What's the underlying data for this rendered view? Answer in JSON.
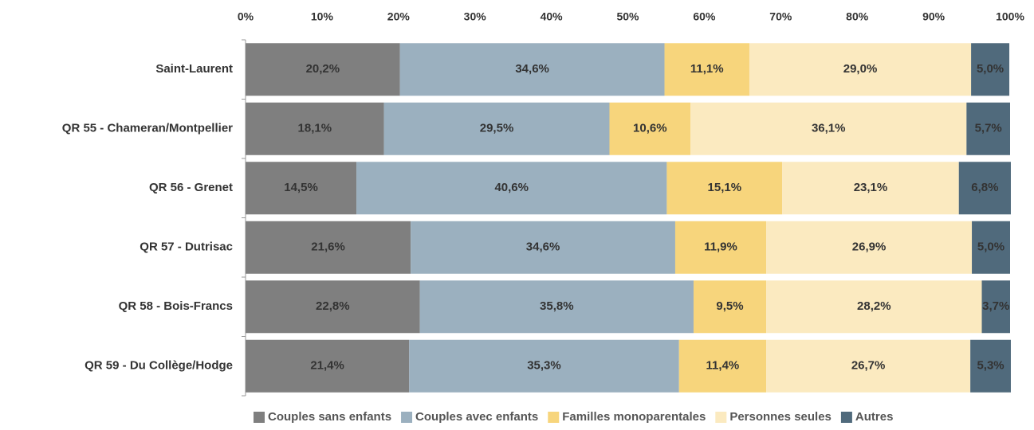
{
  "chart_data": {
    "type": "stacked_barh",
    "categories": [
      "Saint-Laurent",
      "QR 55 - Chameran/Montpellier",
      "QR 56 - Grenet",
      "QR 57 - Dutrisac",
      "QR 58 - Bois-Francs",
      "QR 59 - Du Collège/Hodge"
    ],
    "xlim": [
      0,
      100
    ],
    "xticks": [
      {
        "value": 0,
        "label": "0%"
      },
      {
        "value": 10,
        "label": "10%"
      },
      {
        "value": 20,
        "label": "20%"
      },
      {
        "value": 30,
        "label": "30%"
      },
      {
        "value": 40,
        "label": "40%"
      },
      {
        "value": 50,
        "label": "50%"
      },
      {
        "value": 60,
        "label": "60%"
      },
      {
        "value": 70,
        "label": "70%"
      },
      {
        "value": 80,
        "label": "80%"
      },
      {
        "value": 90,
        "label": "90%"
      },
      {
        "value": 100,
        "label": "100%"
      }
    ],
    "legend": "bottom",
    "series": [
      {
        "name": "Couples sans enfants",
        "color": "#7f7f7f",
        "label_color": "#f8e3a3",
        "values": [
          20.2,
          18.1,
          14.5,
          21.6,
          22.8,
          21.4
        ],
        "value_labels": [
          "20,2%",
          "18,1%",
          "14,5%",
          "21,6%",
          "22,8%",
          "21,4%"
        ]
      },
      {
        "name": "Couples avec enfants",
        "color": "#9bb0bf",
        "label_color": "#4f6677",
        "values": [
          34.6,
          29.5,
          40.6,
          34.6,
          35.8,
          35.3
        ],
        "value_labels": [
          "34,6%",
          "29,5%",
          "40,6%",
          "34,6%",
          "35,8%",
          "35,3%"
        ]
      },
      {
        "name": "Familles monoparentales",
        "color": "#f7d57c",
        "label_color": "#4a5866",
        "values": [
          11.1,
          10.6,
          15.1,
          11.9,
          9.5,
          11.4
        ],
        "value_labels": [
          "11,1%",
          "10,6%",
          "15,1%",
          "11,9%",
          "9,5%",
          "11,4%"
        ]
      },
      {
        "name": "Personnes seules",
        "color": "#fbeac0",
        "label_color": "#4a5866",
        "values": [
          29.0,
          36.1,
          23.1,
          26.9,
          28.2,
          26.7
        ],
        "value_labels": [
          "29,0%",
          "36,1%",
          "23,1%",
          "26,9%",
          "28,2%",
          "26,7%"
        ]
      },
      {
        "name": "Autres",
        "color": "#506a7c",
        "label_color": "#9bb0bf",
        "values": [
          5.0,
          5.7,
          6.8,
          5.0,
          3.7,
          5.3
        ],
        "value_labels": [
          "5,0%",
          "5,7%",
          "6,8%",
          "5,0%",
          "3,7%",
          "5,3%"
        ]
      }
    ]
  }
}
